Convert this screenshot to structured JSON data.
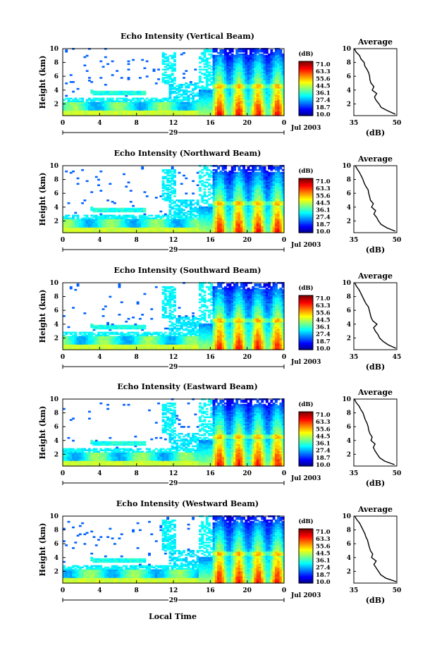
{
  "page": {
    "xaxis_label": "Local Time"
  },
  "chart_data": [
    {
      "type": "heatmap",
      "title": "Echo Intensity (Vertical Beam)",
      "ylabel": "Height (km)",
      "xlabel": "Local Time",
      "x_ticks": [
        "0",
        "4",
        "8",
        "12",
        "16",
        "20",
        "0"
      ],
      "y_ticks": [
        "2",
        "4",
        "6",
        "8",
        "10"
      ],
      "xlim": [
        0,
        24
      ],
      "ylim": [
        0.3,
        10
      ],
      "date_label": "29",
      "month_label": "Jul 2003",
      "colorbar": {
        "unit": "(dB)",
        "levels": [
          "71.0",
          "63.3",
          "55.6",
          "44.5",
          "36.1",
          "27.4",
          "18.7",
          "10.0"
        ],
        "range": [
          10.0,
          71.0
        ]
      },
      "average_profile": {
        "title": "Average",
        "xlabel": "(dB)",
        "xlim": [
          35,
          50
        ],
        "x_ticks": [
          "35",
          "50"
        ],
        "ylim": [
          0.3,
          10
        ],
        "y_ticks": [
          "2",
          "4",
          "6",
          "8",
          "10"
        ],
        "height": [
          0.5,
          1.0,
          1.5,
          2.0,
          2.5,
          3.0,
          3.5,
          4.0,
          4.5,
          5.0,
          5.5,
          6.0,
          6.5,
          7.0,
          7.5,
          8.0,
          8.5,
          9.0,
          9.5,
          10.0
        ],
        "value": [
          49.5,
          46.8,
          44.5,
          43.8,
          42.8,
          42.2,
          43.0,
          41.4,
          42.0,
          41.0,
          40.6,
          40.5,
          40.2,
          39.6,
          38.8,
          38.6,
          37.5,
          37.0,
          35.8,
          35.2
        ]
      }
    },
    {
      "type": "heatmap",
      "title": "Echo Intensity (Northward Beam)",
      "ylabel": "Height (km)",
      "xlabel": "Local Time",
      "x_ticks": [
        "0",
        "4",
        "8",
        "12",
        "16",
        "20",
        "0"
      ],
      "y_ticks": [
        "2",
        "4",
        "6",
        "8",
        "10"
      ],
      "xlim": [
        0,
        24
      ],
      "ylim": [
        0.3,
        10
      ],
      "date_label": "29",
      "month_label": "Jul 2003",
      "colorbar": {
        "unit": "(dB)",
        "levels": [
          "71.0",
          "63.3",
          "55.6",
          "44.5",
          "36.1",
          "27.4",
          "18.7",
          "10.0"
        ],
        "range": [
          10.0,
          71.0
        ]
      },
      "average_profile": {
        "title": "Average",
        "xlabel": "(dB)",
        "xlim": [
          35,
          50
        ],
        "x_ticks": [
          "35",
          "50"
        ],
        "ylim": [
          0.3,
          10
        ],
        "y_ticks": [
          "2",
          "4",
          "6",
          "8",
          "10"
        ],
        "height": [
          0.5,
          1.0,
          1.5,
          2.0,
          2.5,
          3.0,
          3.5,
          4.0,
          4.5,
          5.0,
          5.5,
          6.0,
          6.5,
          7.0,
          7.5,
          8.0,
          8.5,
          9.0,
          9.5,
          10.0
        ],
        "value": [
          49.5,
          46.5,
          44.5,
          43.6,
          43.0,
          42.0,
          42.6,
          41.2,
          41.8,
          40.8,
          40.5,
          40.2,
          40.0,
          39.2,
          38.6,
          38.2,
          37.6,
          37.0,
          36.2,
          35.5
        ]
      }
    },
    {
      "type": "heatmap",
      "title": "Echo Intensity (Southward Beam)",
      "ylabel": "Height (km)",
      "xlabel": "Local Time",
      "x_ticks": [
        "0",
        "4",
        "8",
        "12",
        "16",
        "20",
        "0"
      ],
      "y_ticks": [
        "2",
        "4",
        "6",
        "8",
        "10"
      ],
      "xlim": [
        0,
        24
      ],
      "ylim": [
        0.3,
        10
      ],
      "date_label": "29",
      "month_label": "Jul 2003",
      "colorbar": {
        "unit": "(dB)",
        "levels": [
          "71.0",
          "63.3",
          "55.6",
          "44.5",
          "36.1",
          "27.4",
          "18.7",
          "10.0"
        ],
        "range": [
          10.0,
          71.0
        ]
      },
      "average_profile": {
        "title": "Average",
        "xlabel": "(dB)",
        "xlim": [
          35,
          45
        ],
        "x_ticks": [
          "35",
          "45"
        ],
        "ylim": [
          0.3,
          10
        ],
        "y_ticks": [
          "2",
          "4",
          "6",
          "8",
          "10"
        ],
        "height": [
          0.5,
          1.0,
          1.5,
          2.0,
          2.5,
          3.0,
          3.5,
          4.0,
          4.5,
          5.0,
          5.5,
          6.0,
          6.5,
          7.0,
          7.5,
          8.0,
          8.5,
          9.0,
          9.5,
          10.0
        ],
        "value": [
          44.8,
          43.0,
          41.8,
          41.0,
          40.6,
          40.0,
          39.6,
          40.4,
          39.4,
          39.0,
          38.8,
          38.6,
          38.4,
          37.8,
          37.4,
          37.0,
          36.6,
          36.2,
          35.6,
          35.2
        ]
      }
    },
    {
      "type": "heatmap",
      "title": "Echo Intensity (Eastward Beam)",
      "ylabel": "Height (km)",
      "xlabel": "Local Time",
      "x_ticks": [
        "0",
        "4",
        "8",
        "12",
        "16",
        "20",
        "0"
      ],
      "y_ticks": [
        "2",
        "4",
        "6",
        "8",
        "10"
      ],
      "xlim": [
        0,
        24
      ],
      "ylim": [
        0.3,
        10
      ],
      "date_label": "29",
      "month_label": "Jul 2003",
      "colorbar": {
        "unit": "(dB)",
        "levels": [
          "71.0",
          "63.3",
          "55.6",
          "44.5",
          "36.1",
          "27.4",
          "18.7",
          "10.0"
        ],
        "range": [
          10.0,
          71.0
        ]
      },
      "average_profile": {
        "title": "Average",
        "xlabel": "(dB)",
        "xlim": [
          35,
          50
        ],
        "x_ticks": [
          "35",
          "50"
        ],
        "ylim": [
          0.3,
          10
        ],
        "y_ticks": [
          "2",
          "4",
          "6",
          "8",
          "10"
        ],
        "height": [
          0.5,
          1.0,
          1.5,
          2.0,
          2.5,
          3.0,
          3.5,
          4.0,
          4.5,
          5.0,
          5.5,
          6.0,
          6.5,
          7.0,
          7.5,
          8.0,
          8.5,
          9.0,
          9.5,
          10.0
        ],
        "value": [
          49.2,
          45.8,
          44.0,
          43.2,
          42.4,
          41.8,
          42.4,
          41.0,
          41.4,
          40.6,
          40.2,
          40.0,
          39.6,
          39.0,
          38.6,
          38.2,
          37.4,
          36.8,
          35.8,
          35.2
        ]
      }
    },
    {
      "type": "heatmap",
      "title": "Echo Intensity (Westward Beam)",
      "ylabel": "Height (km)",
      "xlabel": "Local Time",
      "x_ticks": [
        "0",
        "4",
        "8",
        "12",
        "16",
        "20",
        "0"
      ],
      "y_ticks": [
        "2",
        "4",
        "6",
        "8",
        "10"
      ],
      "xlim": [
        0,
        24
      ],
      "ylim": [
        0.3,
        10
      ],
      "date_label": "29",
      "month_label": "Jul 2003",
      "colorbar": {
        "unit": "(dB)",
        "levels": [
          "71.0",
          "63.3",
          "55.6",
          "44.5",
          "36.1",
          "27.4",
          "18.7",
          "10.0"
        ],
        "range": [
          10.0,
          71.0
        ]
      },
      "average_profile": {
        "title": "Average",
        "xlabel": "(dB)",
        "xlim": [
          35,
          50
        ],
        "x_ticks": [
          "35",
          "50"
        ],
        "ylim": [
          0.3,
          10
        ],
        "y_ticks": [
          "2",
          "4",
          "6",
          "8",
          "10"
        ],
        "height": [
          0.5,
          1.0,
          1.5,
          2.0,
          2.5,
          3.0,
          3.5,
          4.0,
          4.5,
          5.0,
          5.5,
          6.0,
          6.5,
          7.0,
          7.5,
          8.0,
          8.5,
          9.0,
          9.5,
          10.0
        ],
        "value": [
          49.8,
          46.2,
          44.4,
          43.6,
          42.8,
          42.0,
          42.8,
          41.2,
          41.6,
          40.8,
          40.4,
          40.1,
          39.8,
          39.2,
          38.8,
          38.2,
          37.6,
          37.0,
          36.0,
          35.3
        ]
      }
    }
  ]
}
